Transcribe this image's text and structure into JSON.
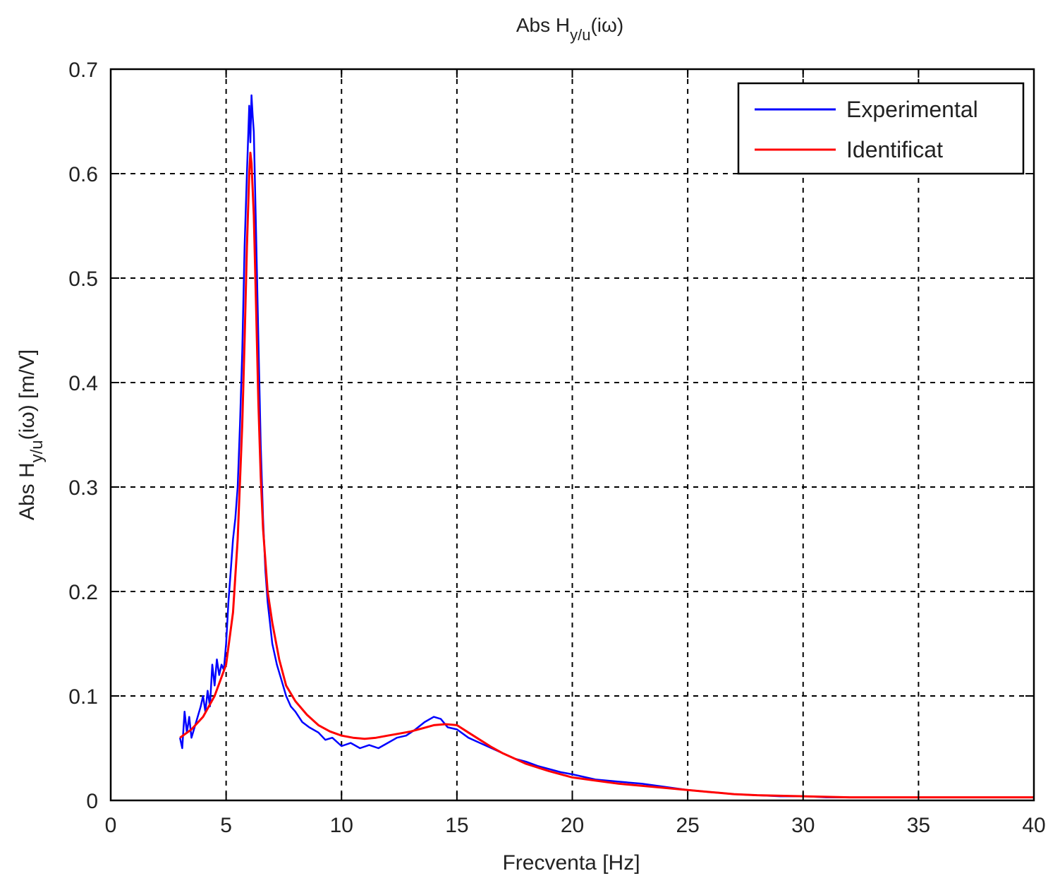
{
  "chart_data": {
    "type": "line",
    "title": "Abs H",
    "title_sub": "y/u",
    "title_tail": "(iω)",
    "xlabel": "Frecventa [Hz]",
    "ylabel": "Abs H",
    "ylabel_sub": "y/u",
    "ylabel_tail": "(iω) [m/V]",
    "xlim": [
      0,
      40
    ],
    "ylim": [
      0,
      0.7
    ],
    "xticks": [
      0,
      5,
      10,
      15,
      20,
      25,
      30,
      35,
      40
    ],
    "yticks": [
      0,
      0.1,
      0.2,
      0.3,
      0.4,
      0.5,
      0.6,
      0.7
    ],
    "xtick_labels": [
      "0",
      "5",
      "10",
      "15",
      "20",
      "25",
      "30",
      "35",
      "40"
    ],
    "ytick_labels": [
      "0",
      "0.1",
      "0.2",
      "0.3",
      "0.4",
      "0.5",
      "0.6",
      "0.7"
    ],
    "grid": true,
    "legend_position": "top-right",
    "series": [
      {
        "name": "Experimental",
        "color": "#0000ff",
        "x": [
          3.0,
          3.1,
          3.2,
          3.3,
          3.4,
          3.5,
          3.7,
          3.9,
          4.0,
          4.1,
          4.2,
          4.3,
          4.4,
          4.5,
          4.6,
          4.7,
          4.8,
          4.9,
          5.0,
          5.1,
          5.2,
          5.3,
          5.4,
          5.5,
          5.6,
          5.7,
          5.8,
          5.9,
          6.0,
          6.05,
          6.1,
          6.15,
          6.2,
          6.3,
          6.4,
          6.5,
          6.6,
          6.7,
          6.8,
          6.9,
          7.0,
          7.2,
          7.4,
          7.6,
          7.8,
          8.0,
          8.3,
          8.6,
          9.0,
          9.3,
          9.6,
          10.0,
          10.4,
          10.8,
          11.2,
          11.6,
          12.0,
          12.4,
          12.8,
          13.2,
          13.6,
          14.0,
          14.3,
          14.6,
          15.0,
          15.5,
          16.0,
          16.5,
          17.0,
          17.5,
          18.0,
          18.5,
          19.0,
          19.5,
          20.0,
          21.0,
          22.0,
          23.0,
          24.0,
          25.0,
          26.0,
          27.0,
          28.0,
          29.0,
          30.0,
          31.0,
          32.0
        ],
        "y": [
          0.06,
          0.05,
          0.085,
          0.065,
          0.08,
          0.06,
          0.075,
          0.09,
          0.1,
          0.085,
          0.105,
          0.09,
          0.13,
          0.11,
          0.135,
          0.12,
          0.13,
          0.125,
          0.15,
          0.19,
          0.22,
          0.25,
          0.27,
          0.3,
          0.36,
          0.43,
          0.53,
          0.6,
          0.665,
          0.63,
          0.675,
          0.655,
          0.64,
          0.54,
          0.44,
          0.34,
          0.27,
          0.22,
          0.19,
          0.17,
          0.15,
          0.13,
          0.115,
          0.1,
          0.09,
          0.085,
          0.075,
          0.07,
          0.065,
          0.058,
          0.06,
          0.052,
          0.055,
          0.05,
          0.053,
          0.05,
          0.055,
          0.06,
          0.062,
          0.068,
          0.075,
          0.08,
          0.078,
          0.07,
          0.068,
          0.06,
          0.055,
          0.05,
          0.045,
          0.04,
          0.037,
          0.033,
          0.03,
          0.027,
          0.025,
          0.02,
          0.018,
          0.016,
          0.013,
          0.01,
          0.008,
          0.006,
          0.005,
          0.004,
          0.004,
          0.003,
          0.003
        ]
      },
      {
        "name": "Identificat",
        "color": "#ff0000",
        "x": [
          3.0,
          3.5,
          4.0,
          4.5,
          5.0,
          5.3,
          5.5,
          5.7,
          5.8,
          5.9,
          6.0,
          6.05,
          6.1,
          6.2,
          6.3,
          6.4,
          6.5,
          6.6,
          6.8,
          7.0,
          7.3,
          7.6,
          8.0,
          8.5,
          9.0,
          9.5,
          10.0,
          10.5,
          11.0,
          11.5,
          12.0,
          12.5,
          13.0,
          13.5,
          14.0,
          14.5,
          15.0,
          15.5,
          16.0,
          16.5,
          17.0,
          17.5,
          18.0,
          19.0,
          20.0,
          21.0,
          22.0,
          23.0,
          24.0,
          25.0,
          26.0,
          27.0,
          28.0,
          30.0,
          32.0,
          35.0,
          38.0,
          40.0
        ],
        "y": [
          0.06,
          0.068,
          0.08,
          0.1,
          0.13,
          0.18,
          0.25,
          0.36,
          0.44,
          0.53,
          0.6,
          0.62,
          0.61,
          0.56,
          0.47,
          0.38,
          0.31,
          0.26,
          0.2,
          0.17,
          0.135,
          0.11,
          0.095,
          0.082,
          0.072,
          0.066,
          0.062,
          0.06,
          0.059,
          0.06,
          0.062,
          0.064,
          0.066,
          0.069,
          0.072,
          0.073,
          0.072,
          0.065,
          0.058,
          0.051,
          0.045,
          0.04,
          0.035,
          0.028,
          0.022,
          0.019,
          0.016,
          0.014,
          0.012,
          0.01,
          0.008,
          0.006,
          0.005,
          0.004,
          0.003,
          0.003,
          0.003,
          0.003
        ]
      }
    ]
  }
}
